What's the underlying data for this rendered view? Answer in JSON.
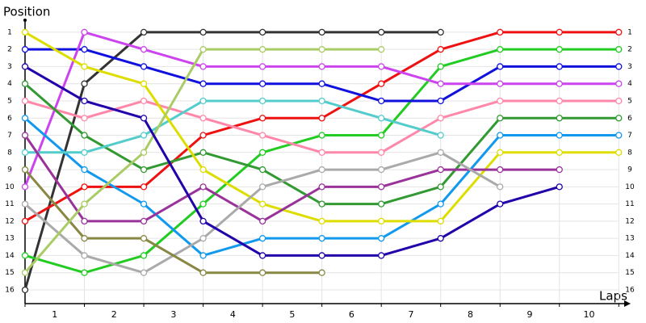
{
  "chart_data": {
    "type": "line",
    "y_label": "Position",
    "x_label": "Laps",
    "categories": [
      "1",
      "2",
      "3",
      "4",
      "5",
      "6",
      "7",
      "8",
      "9",
      "10"
    ],
    "x": [
      0,
      1,
      2,
      3,
      4,
      5,
      6,
      7,
      8,
      9,
      10
    ],
    "xlim": [
      0,
      10.2
    ],
    "ylim": [
      0.3,
      16.8
    ],
    "inverted": true,
    "yticks": [
      1,
      2,
      3,
      4,
      5,
      6,
      7,
      8,
      9,
      10,
      11,
      12,
      13,
      14,
      15,
      16
    ],
    "grid": true,
    "series": [
      {
        "color": "#333333",
        "values": [
          16,
          4,
          1,
          1,
          1,
          1,
          1,
          1,
          null,
          null,
          null
        ]
      },
      {
        "color": "#ee1111",
        "values": [
          12,
          10,
          10,
          7,
          6,
          6,
          4,
          2,
          1,
          1,
          1
        ]
      },
      {
        "color": "#22cc22",
        "values": [
          14,
          15,
          14,
          11,
          8,
          7,
          7,
          3,
          2,
          2,
          2
        ]
      },
      {
        "color": "#1111dd",
        "values": [
          2,
          2,
          3,
          4,
          4,
          4,
          5,
          5,
          3,
          3,
          3
        ]
      },
      {
        "color": "#cc44ee",
        "values": [
          10,
          1,
          2,
          3,
          3,
          3,
          3,
          4,
          4,
          4,
          4
        ]
      },
      {
        "color": "#ff88aa",
        "values": [
          5,
          6,
          5,
          6,
          7,
          8,
          8,
          6,
          5,
          5,
          5
        ]
      },
      {
        "color": "#339933",
        "values": [
          4,
          7,
          9,
          8,
          9,
          11,
          11,
          10,
          6,
          6,
          6
        ]
      },
      {
        "color": "#1199ee",
        "values": [
          6,
          9,
          11,
          14,
          13,
          13,
          13,
          11,
          7,
          7,
          7
        ]
      },
      {
        "color": "#55cccc",
        "values": [
          8,
          8,
          7,
          5,
          5,
          5,
          6,
          7,
          null,
          null,
          null
        ]
      },
      {
        "color": "#dddd00",
        "values": [
          1,
          3,
          4,
          9,
          11,
          12,
          12,
          12,
          8,
          8,
          8
        ]
      },
      {
        "color": "#993399",
        "values": [
          7,
          12,
          12,
          10,
          12,
          10,
          10,
          9,
          9,
          9,
          null
        ]
      },
      {
        "color": "#aaaaaa",
        "values": [
          11,
          14,
          15,
          13,
          10,
          9,
          9,
          8,
          10,
          null,
          null
        ]
      },
      {
        "color": "#888844",
        "values": [
          9,
          13,
          13,
          15,
          15,
          15,
          null,
          null,
          null,
          null,
          null
        ]
      },
      {
        "color": "#aacc66",
        "values": [
          15,
          11,
          8,
          2,
          2,
          2,
          2,
          null,
          null,
          null,
          null
        ]
      },
      {
        "color": "#2200aa",
        "values": [
          3,
          5,
          6,
          12,
          14,
          14,
          14,
          13,
          11,
          10,
          null
        ]
      }
    ]
  }
}
